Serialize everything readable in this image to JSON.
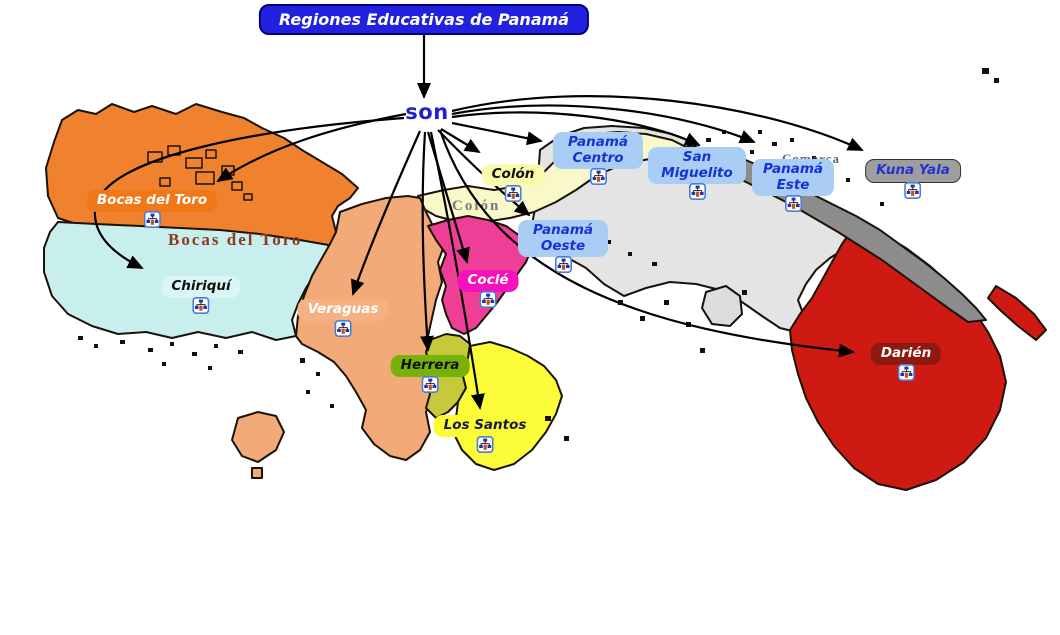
{
  "title": {
    "label": "Regiones Educativas de Panamá",
    "bg": "#2121DF",
    "text_color": "#FFFFFF"
  },
  "linking_phrase": {
    "label": "son",
    "text_color": "#2222CC"
  },
  "regions": [
    {
      "id": "bocas-del-toro",
      "label": "Bocas del Toro",
      "bg": "#F07818",
      "text_color": "#FFFFFF"
    },
    {
      "id": "chiriqui",
      "label": "Chiriquí",
      "bg": "#D8F6F3",
      "text_color": "#101010"
    },
    {
      "id": "veraguas",
      "label": "Veraguas",
      "bg": "#F6B183",
      "text_color": "#FFFFFF"
    },
    {
      "id": "cocle",
      "label": "Coclé",
      "bg": "#F711BC",
      "text_color": "#FFFFFF"
    },
    {
      "id": "herrera",
      "label": "Herrera",
      "bg": "#79B10B",
      "text_color": "#101010"
    },
    {
      "id": "los-santos",
      "label": "Los Santos",
      "bg": "#FBFB36",
      "text_color": "#191946"
    },
    {
      "id": "colon",
      "label": "Colón",
      "bg": "#FAFAAE",
      "text_color": "#101010"
    },
    {
      "id": "panama-centro",
      "label": "Panamá Centro",
      "bg": "#A9CDF4",
      "text_color": "#1433D6"
    },
    {
      "id": "panama-oeste",
      "label": "Panamá Oeste",
      "bg": "#A9CDF4",
      "text_color": "#1433D6"
    },
    {
      "id": "san-miguelito",
      "label": "San Miguelito",
      "bg": "#A9CDF4",
      "text_color": "#1433D6"
    },
    {
      "id": "panama-este",
      "label": "Panamá Este",
      "bg": "#A9CDF4",
      "text_color": "#1433D6"
    },
    {
      "id": "kuna-yala",
      "label": "Kuna Yala",
      "bg": "#9E9E9E",
      "text_color": "#2233CC"
    },
    {
      "id": "darien",
      "label": "Darién",
      "bg": "#8D1A10",
      "text_color": "#FFFFFF"
    }
  ],
  "map_labels": {
    "bocas": "Bocas del Toro",
    "colon": "Colón",
    "comarca": "Comarca"
  },
  "icon": {
    "name": "resource-link-icon"
  },
  "map_colors": {
    "bocas_region": "#F0812F",
    "chiriqui_region": "#C8EFED",
    "veraguas_region": "#F2AA79",
    "cocle_region": "#EF3E96",
    "herrera_region": "#C6C93B",
    "los_santos_region": "#FCFC3A",
    "colon_region": "#F8F8C8",
    "panama_region": "#E4E4E4",
    "kuna_yala_region": "#8C8C8C",
    "darien_region": "#CF1913",
    "arrow_color": "#000000"
  }
}
